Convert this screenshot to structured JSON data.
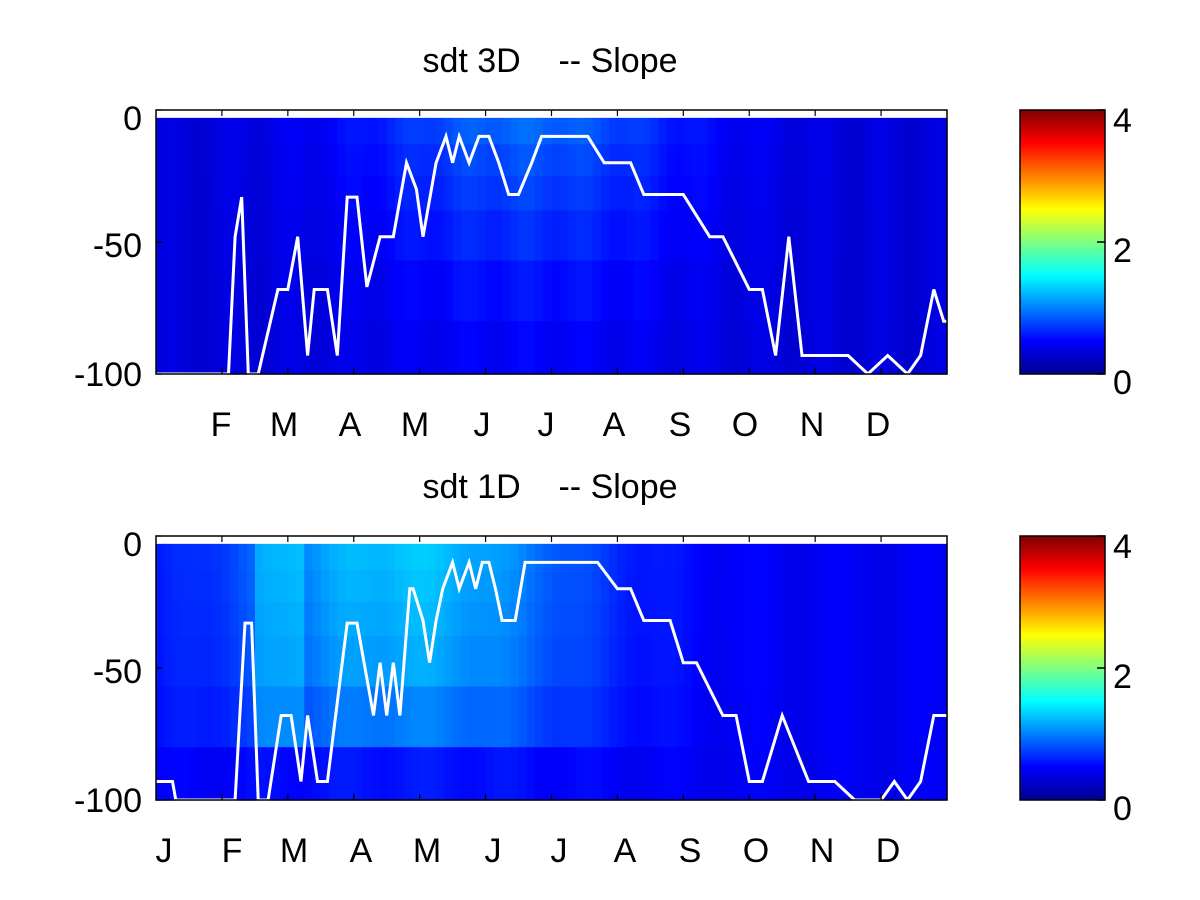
{
  "chart_data": [
    {
      "type": "heatmap",
      "title": "sdt 3D    -- Slope",
      "xticks": [
        "F",
        "M",
        "A",
        "M",
        "J",
        "J",
        "A",
        "S",
        "O",
        "N",
        "D"
      ],
      "yticks": [
        "0",
        "-50",
        "-100"
      ],
      "ylim": [
        -100,
        0
      ],
      "colorbar": {
        "ticks": [
          "4",
          "2",
          "0"
        ],
        "range": [
          0,
          4
        ],
        "colormap": "jet"
      },
      "line_series": {
        "color": "#ffffff",
        "x_months": [
          0,
          1.1,
          1.2,
          1.3,
          1.4,
          1.55,
          1.85,
          2.0,
          2.15,
          2.3,
          2.4,
          2.6,
          2.75,
          2.9,
          3.05,
          3.2,
          3.4,
          3.6,
          3.8,
          3.95,
          4.05,
          4.25,
          4.4,
          4.5,
          4.6,
          4.75,
          4.9,
          5.05,
          5.2,
          5.35,
          5.5,
          5.7,
          5.85,
          6.0,
          6.15,
          6.4,
          6.55,
          6.8,
          7.0,
          7.2,
          7.4,
          7.8,
          8.0,
          8.4,
          8.6,
          9.0,
          9.2,
          9.4,
          9.6,
          9.8,
          9.95,
          10.1,
          10.3,
          10.5,
          10.8,
          11.1,
          11.4,
          11.6,
          11.8,
          11.95,
          12
        ],
        "y": [
          -100,
          -100,
          -48,
          -33,
          -100,
          -100,
          -68,
          -68,
          -48,
          -93,
          -68,
          -68,
          -93,
          -33,
          -33,
          -67,
          -48,
          -48,
          -20,
          -30,
          -48,
          -20,
          -10,
          -20,
          -10,
          -20,
          -10,
          -10,
          -20,
          -32,
          -32,
          -20,
          -10,
          -10,
          -10,
          -10,
          -10,
          -20,
          -20,
          -20,
          -32,
          -32,
          -32,
          -48,
          -48,
          -68,
          -68,
          -93,
          -48,
          -93,
          -93,
          -93,
          -93,
          -93,
          -100,
          -93,
          -100,
          -93,
          -68,
          -80,
          -80
        ]
      }
    },
    {
      "type": "heatmap",
      "title": "sdt 1D    -- Slope",
      "xticks": [
        "J",
        "F",
        "M",
        "A",
        "M",
        "J",
        "J",
        "A",
        "S",
        "O",
        "N",
        "D"
      ],
      "yticks": [
        "0",
        "-50",
        "-100"
      ],
      "ylim": [
        -100,
        0
      ],
      "colorbar": {
        "ticks": [
          "4",
          "2",
          "0"
        ],
        "range": [
          0,
          4
        ],
        "colormap": "jet"
      },
      "line_series": {
        "color": "#ffffff",
        "x_months": [
          0,
          0.25,
          0.3,
          1.2,
          1.35,
          1.45,
          1.55,
          1.7,
          1.9,
          2.05,
          2.2,
          2.3,
          2.45,
          2.6,
          2.9,
          3.05,
          3.3,
          3.4,
          3.5,
          3.6,
          3.7,
          3.85,
          3.9,
          4.05,
          4.15,
          4.25,
          4.35,
          4.5,
          4.6,
          4.75,
          4.85,
          4.95,
          5.05,
          5.15,
          5.25,
          5.45,
          5.6,
          5.75,
          5.85,
          6.1,
          6.4,
          6.7,
          7.0,
          7.05,
          7.2,
          7.4,
          7.8,
          8.0,
          8.2,
          8.6,
          8.8,
          9.0,
          9.2,
          9.5,
          9.9,
          10.1,
          10.3,
          10.6,
          11.0,
          11.2,
          11.4,
          11.6,
          11.8,
          11.95,
          12
        ],
        "y": [
          -93,
          -93,
          -100,
          -100,
          -33,
          -33,
          -100,
          -100,
          -68,
          -68,
          -93,
          -68,
          -93,
          -93,
          -33,
          -33,
          -68,
          -48,
          -68,
          -48,
          -68,
          -20,
          -20,
          -32,
          -48,
          -32,
          -20,
          -10,
          -20,
          -10,
          -20,
          -10,
          -10,
          -20,
          -32,
          -32,
          -10,
          -10,
          -10,
          -10,
          -10,
          -10,
          -20,
          -20,
          -20,
          -32,
          -32,
          -48,
          -48,
          -68,
          -68,
          -93,
          -93,
          -68,
          -93,
          -93,
          -93,
          -100,
          -100,
          -93,
          -100,
          -93,
          -68,
          -68,
          -68
        ]
      }
    }
  ]
}
